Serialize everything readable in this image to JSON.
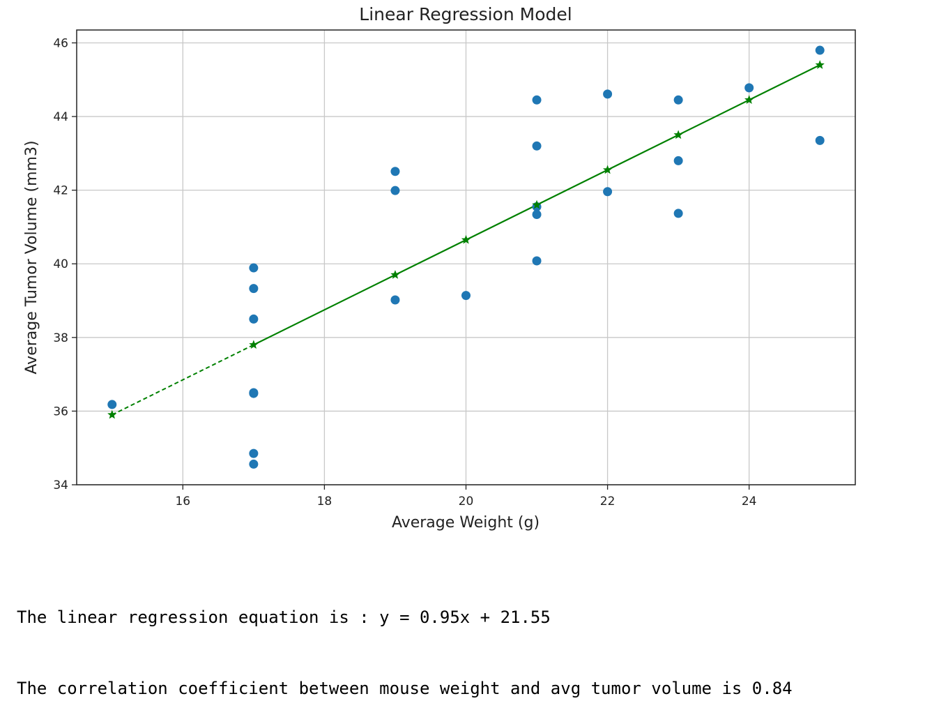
{
  "chart_data": {
    "type": "scatter",
    "title": "Linear Regression Model",
    "xlabel": "Average Weight (g)",
    "ylabel": "Average Tumor Volume (mm3)",
    "xlim": [
      14.5,
      25.5
    ],
    "ylim": [
      34.0,
      46.35
    ],
    "xticks": [
      16,
      18,
      20,
      22,
      24
    ],
    "yticks": [
      34,
      36,
      38,
      40,
      42,
      44,
      46
    ],
    "grid": true,
    "points": {
      "color": "#1f77b4",
      "x": [
        15,
        17,
        17,
        17,
        17,
        17,
        17,
        17,
        19,
        19,
        19,
        20,
        21,
        21,
        21,
        21,
        21,
        22,
        22,
        23,
        23,
        23,
        24,
        25,
        25
      ],
      "y": [
        36.18,
        39.89,
        39.33,
        38.5,
        36.5,
        36.48,
        34.85,
        34.56,
        42.51,
        41.99,
        39.02,
        39.14,
        44.45,
        43.2,
        41.55,
        41.34,
        40.08,
        44.61,
        41.96,
        44.45,
        42.8,
        41.37,
        44.78,
        45.8,
        43.35
      ]
    },
    "regression": {
      "color": "#008000",
      "x": [
        15,
        17,
        19,
        20,
        21,
        22,
        23,
        24,
        25
      ],
      "y": [
        35.9,
        37.8,
        39.7,
        40.65,
        41.6,
        42.55,
        43.5,
        44.45,
        45.4
      ]
    }
  },
  "output": {
    "line1": "The linear regression equation is : y = 0.95x + 21.55",
    "line2": "The correlation coefficient between mouse weight and avg tumor volume is 0.84"
  }
}
